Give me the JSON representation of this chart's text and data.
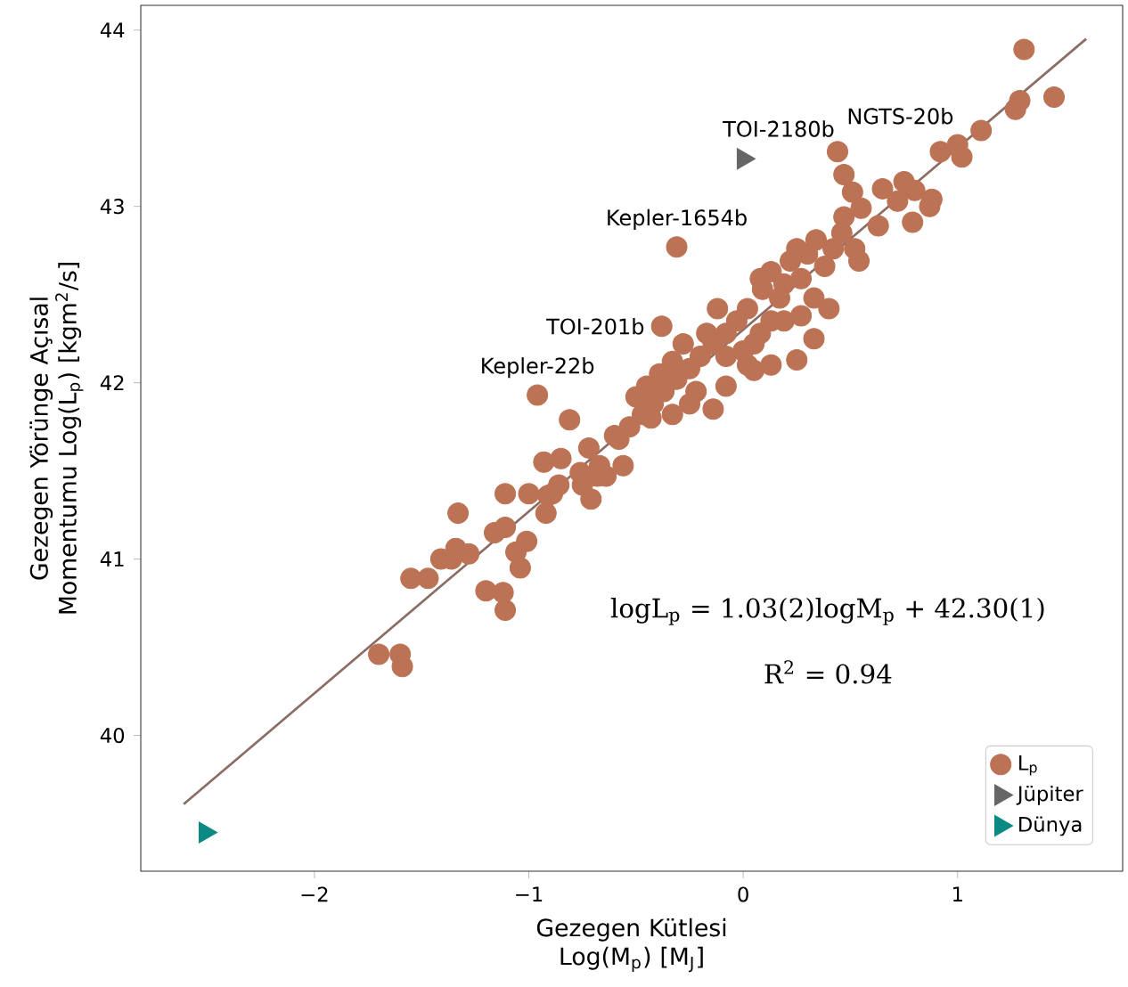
{
  "chart_data": {
    "type": "scatter",
    "xlabel": "Gezegen Kütlesi Log(M$_{p}$) [M$_{J}$]",
    "ylabel": "Gezegen Yörünge Açısal Momentumu Log(L$_{p}$) [kgm$^{2}$/s]",
    "xlim": [
      -2.81,
      1.77
    ],
    "ylim": [
      39.23,
      44.14
    ],
    "xticks": [
      {
        "value": -2,
        "label": "−2"
      },
      {
        "value": -1,
        "label": "−1"
      },
      0,
      1
    ],
    "yticks": [
      40,
      41,
      42,
      43,
      44
    ],
    "legend": "bottom right",
    "series": [
      {
        "name": "L$_{p}$",
        "color": "#bc7254",
        "marker": "circle",
        "x": [
          -1.11,
          -1.0,
          -1.33,
          -1.16,
          -1.11,
          -1.34,
          -1.41,
          -1.36,
          -1.28,
          -1.06,
          -1.01,
          -1.04,
          -1.55,
          -1.47,
          -1.2,
          -1.12,
          -1.11,
          -1.7,
          -1.6,
          -1.59,
          -0.91,
          -0.89,
          -0.92,
          -0.86,
          -0.75,
          -0.71,
          -0.68,
          -0.93,
          1.31,
          1.29,
          1.27,
          1.45,
          1.11,
          1.0,
          0.92,
          1.02,
          0.44,
          0.47,
          0.51,
          0.65,
          0.75,
          0.8,
          0.88,
          0.87,
          0.79,
          0.72,
          0.63,
          0.55,
          0.47,
          0.46,
          0.52,
          0.54,
          0.42,
          0.34,
          0.3,
          0.38,
          0.22,
          0.13,
          0.09,
          0.19,
          0.33,
          0.4,
          0.27,
          0.33,
          0.25,
          0.13,
          0.05,
          0.02,
          -0.03,
          -0.08,
          -0.14,
          -0.2,
          -0.25,
          -0.31,
          -0.37,
          -0.42,
          -0.47,
          -0.53,
          -0.58,
          -0.08,
          -0.22,
          0.08,
          0.13,
          0.05,
          0.0,
          -0.12,
          -0.17,
          -0.28,
          -0.33,
          -0.39,
          -0.45,
          -0.5,
          -0.25,
          -0.33,
          -0.08,
          0.19,
          0.17,
          0.08,
          0.27,
          0.25,
          -0.64,
          -0.31,
          -0.38,
          -0.96,
          -0.81,
          -0.72,
          -0.6,
          -0.67,
          -0.76,
          -0.85,
          -0.56,
          -0.43,
          -0.14,
          0.02
        ],
        "values": [
          41.37,
          41.37,
          41.26,
          41.15,
          41.18,
          41.06,
          41.0,
          41.0,
          41.03,
          41.04,
          41.1,
          40.95,
          40.89,
          40.89,
          40.82,
          40.81,
          40.71,
          40.46,
          40.46,
          40.39,
          41.36,
          41.37,
          41.26,
          41.42,
          41.42,
          41.34,
          41.47,
          41.55,
          43.89,
          43.6,
          43.55,
          43.62,
          43.43,
          43.35,
          43.31,
          43.28,
          43.31,
          43.18,
          43.08,
          43.1,
          43.14,
          43.09,
          43.04,
          43.0,
          42.91,
          43.03,
          42.89,
          42.99,
          42.94,
          42.85,
          42.76,
          42.69,
          42.76,
          42.81,
          42.73,
          42.66,
          42.69,
          42.63,
          42.53,
          42.56,
          42.48,
          42.42,
          42.38,
          42.25,
          42.13,
          42.1,
          42.07,
          42.42,
          42.35,
          42.28,
          42.22,
          42.15,
          42.08,
          42.02,
          41.95,
          41.88,
          41.82,
          41.75,
          41.68,
          41.98,
          41.95,
          42.28,
          42.35,
          42.22,
          42.18,
          42.42,
          42.28,
          42.22,
          42.12,
          42.05,
          41.98,
          41.92,
          41.88,
          41.82,
          42.15,
          42.35,
          42.48,
          42.59,
          42.59,
          42.76,
          41.47,
          42.77,
          42.32,
          41.93,
          41.79,
          41.63,
          41.7,
          41.53,
          41.49,
          41.57,
          41.53,
          41.8,
          41.85,
          42.1
        ]
      },
      {
        "name": "Jüpiter",
        "color": "#666666",
        "marker": "triangle",
        "x": [
          0.0
        ],
        "values": [
          43.27
        ]
      },
      {
        "name": "Dünya",
        "color": "#0b8a84",
        "marker": "triangle",
        "x": [
          -2.51
        ],
        "values": [
          39.45
        ]
      },
      {
        "type": "line",
        "color": "#8c6d66",
        "line_style": "solid",
        "x": [
          -2.61,
          1.6
        ],
        "values": [
          39.61,
          43.95
        ]
      }
    ],
    "annotations": [
      {
        "text": "Kepler-22b",
        "x": -0.96,
        "y": 41.93
      },
      {
        "text": "Kepler-1654b",
        "x": -0.31,
        "y": 42.77
      },
      {
        "text": "TOI-201b",
        "x": -0.38,
        "y": 42.32
      },
      {
        "text": "TOI-2180b",
        "x": 0.44,
        "y": 43.31
      },
      {
        "text": "NGTS-20b",
        "x": 0.47,
        "y": 43.18
      },
      "logL$_{p}$ = 1.03(2)logM$_{p}$ + 42.30(1)",
      "R$^{2}$ = 0.94"
    ]
  }
}
